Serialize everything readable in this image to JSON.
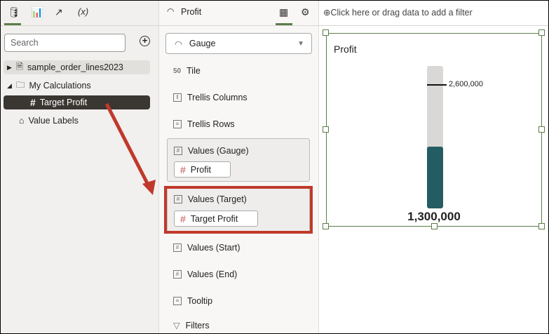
{
  "left_panel": {
    "tabs": [
      {
        "icon": "database-icon"
      },
      {
        "icon": "bar-chart-icon"
      },
      {
        "icon": "trend-icon"
      },
      {
        "label": "(x)",
        "icon": "calculation-icon"
      }
    ],
    "search_placeholder": "Search",
    "tree": [
      {
        "label": "sample_order_lines2023",
        "icon": "dataset-icon"
      },
      {
        "label": "My Calculations",
        "icon": "folder-icon"
      },
      {
        "label": "Target Profit",
        "icon": "hash-icon",
        "selected": true
      },
      {
        "label": "Value Labels",
        "icon": "tag-icon"
      }
    ]
  },
  "middle_panel": {
    "title": "Profit",
    "viz_type": "Gauge",
    "grammar": [
      {
        "label": "Tile",
        "icon": "tile-icon"
      },
      {
        "label": "Trellis Columns",
        "icon": "trellis-columns-icon"
      },
      {
        "label": "Trellis Rows",
        "icon": "trellis-rows-icon"
      },
      {
        "label": "Values (Gauge)",
        "pill": "Profit"
      },
      {
        "label": "Values (Target)",
        "pill": "Target Profit"
      },
      {
        "label": "Values (Start)"
      },
      {
        "label": "Values (End)"
      },
      {
        "label": "Tooltip",
        "icon": "tooltip-icon"
      },
      {
        "label": "Filters",
        "icon": "filter-icon"
      }
    ]
  },
  "canvas": {
    "filter_hint": "Click here or drag data to add a filter",
    "title": "Profit",
    "value": 1300000,
    "value_label": "1,300,000",
    "target": 2600000,
    "target_label": "2,600,000",
    "max": 3000000,
    "fill_color": "#245c63",
    "track_color": "#d9d8d6"
  },
  "annotation_color": "#c0392b"
}
